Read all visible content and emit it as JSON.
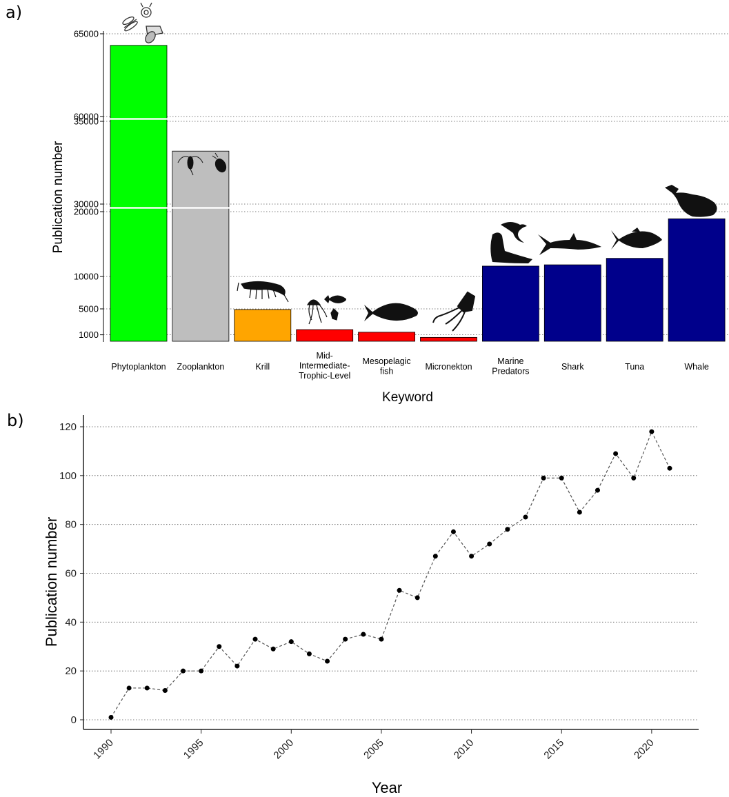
{
  "panel_labels": {
    "a": "a)",
    "b": "b)"
  },
  "colors": {
    "phytoplankton": "#00ff00",
    "zooplankton": "#bebebe",
    "krill": "#ffa500",
    "mid_trophic": "#ff0000",
    "predators": "#00008b",
    "grid": "#555555",
    "line": "#555555",
    "point": "#000000"
  },
  "icons": [
    "phytoplankton-icon",
    "zooplankton-icon",
    "krill-icon",
    "jellyfish-icon",
    "lanternfish-icon",
    "squid-icon",
    "seal-icon",
    "seabird-icon",
    "shark-icon",
    "tuna-icon",
    "whale-icon"
  ],
  "chart_data": [
    {
      "type": "bar",
      "xlabel": "Keyword",
      "ylabel": "Publication number",
      "y_axis": "broken (three segments: 0–20000, 30000–35000, 60000–65000)",
      "grid": "horizontal dotted",
      "yticks": [
        1000,
        5000,
        10000,
        20000,
        30000,
        35000,
        60000,
        65000
      ],
      "categories": [
        "Phytoplankton",
        "Zooplankton",
        "Krill",
        "Mid-Intermediate-Trophic-Level",
        "Mesopelagic fish",
        "Micronekton",
        "Marine Predators",
        "Shark",
        "Tuna",
        "Whale"
      ],
      "category_label_lines": [
        [
          "Phytoplankton"
        ],
        [
          "Zooplankton"
        ],
        [
          "Krill"
        ],
        [
          "Mid-",
          "Intermediate-",
          "Trophic-Level"
        ],
        [
          "Mesopelagic",
          "fish"
        ],
        [
          "Micronekton"
        ],
        [
          "Marine",
          "Predators"
        ],
        [
          "Shark"
        ],
        [
          "Tuna"
        ],
        [
          "Whale"
        ]
      ],
      "values": [
        64300,
        33200,
        4900,
        1800,
        1400,
        600,
        11600,
        11800,
        12800,
        18900
      ],
      "bar_colors": [
        "#00ff00",
        "#bebebe",
        "#ffa500",
        "#ff0000",
        "#ff0000",
        "#ff0000",
        "#00008b",
        "#00008b",
        "#00008b",
        "#00008b"
      ]
    },
    {
      "type": "line",
      "xlabel": "Year",
      "ylabel": "Publication number",
      "xlim": [
        1990,
        2021
      ],
      "ylim": [
        0,
        120
      ],
      "xticks": [
        1990,
        1995,
        2000,
        2005,
        2010,
        2015,
        2020
      ],
      "yticks": [
        0,
        20,
        40,
        60,
        80,
        100,
        120
      ],
      "grid": "horizontal dotted",
      "line_style": "dashed",
      "x": [
        1990,
        1991,
        1992,
        1993,
        1994,
        1995,
        1996,
        1997,
        1998,
        1999,
        2000,
        2001,
        2002,
        2003,
        2004,
        2005,
        2006,
        2007,
        2008,
        2009,
        2010,
        2011,
        2012,
        2013,
        2014,
        2015,
        2016,
        2017,
        2018,
        2019,
        2020,
        2021
      ],
      "y": [
        1,
        13,
        13,
        12,
        20,
        20,
        30,
        22,
        33,
        29,
        32,
        27,
        24,
        33,
        35,
        33,
        53,
        50,
        67,
        77,
        67,
        72,
        78,
        83,
        99,
        99,
        85,
        94,
        109,
        99,
        118,
        103
      ]
    }
  ]
}
